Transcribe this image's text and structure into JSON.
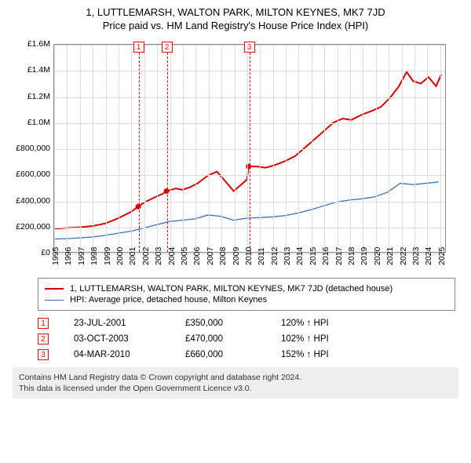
{
  "title": {
    "line1": "1, LUTTLEMARSH, WALTON PARK, MILTON KEYNES, MK7 7JD",
    "line2": "Price paid vs. HM Land Registry's House Price Index (HPI)"
  },
  "chart": {
    "type": "line",
    "background_color": "#ffffff",
    "grid_color": "#dddddd",
    "axis_color": "#888888",
    "x": {
      "min": 1995,
      "max": 2025.5,
      "ticks": [
        1995,
        1996,
        1997,
        1998,
        1999,
        2000,
        2001,
        2002,
        2003,
        2004,
        2005,
        2006,
        2007,
        2008,
        2009,
        2010,
        2011,
        2012,
        2013,
        2014,
        2015,
        2016,
        2017,
        2018,
        2019,
        2020,
        2021,
        2022,
        2023,
        2024,
        2025
      ]
    },
    "y": {
      "min": 0,
      "max": 1600000,
      "step": 200000,
      "tick_labels": [
        "£0",
        "£200,000",
        "£400,000",
        "£600,000",
        "£800,000",
        "£1.0M",
        "£1.2M",
        "£1.4M",
        "£1.6M"
      ]
    },
    "series": {
      "price_paid": {
        "label": "1, LUTTLEMARSH, WALTON PARK, MILTON KEYNES, MK7 7JD (detached house)",
        "color": "#d40000",
        "line_width": 2,
        "points": [
          [
            1995.0,
            180000
          ],
          [
            1996.0,
            185000
          ],
          [
            1997.0,
            190000
          ],
          [
            1998.0,
            200000
          ],
          [
            1999.0,
            220000
          ],
          [
            2000.0,
            260000
          ],
          [
            2001.0,
            310000
          ],
          [
            2001.56,
            350000
          ],
          [
            2002.0,
            380000
          ],
          [
            2002.8,
            420000
          ],
          [
            2003.5,
            450000
          ],
          [
            2003.76,
            470000
          ],
          [
            2004.5,
            490000
          ],
          [
            2005.0,
            480000
          ],
          [
            2005.6,
            500000
          ],
          [
            2006.2,
            530000
          ],
          [
            2007.0,
            590000
          ],
          [
            2007.7,
            620000
          ],
          [
            2008.4,
            540000
          ],
          [
            2009.0,
            470000
          ],
          [
            2009.6,
            520000
          ],
          [
            2010.05,
            560000
          ],
          [
            2010.17,
            660000
          ],
          [
            2010.8,
            660000
          ],
          [
            2011.5,
            650000
          ],
          [
            2012.2,
            670000
          ],
          [
            2013.0,
            700000
          ],
          [
            2013.8,
            740000
          ],
          [
            2014.5,
            800000
          ],
          [
            2015.2,
            860000
          ],
          [
            2016.0,
            930000
          ],
          [
            2016.8,
            1000000
          ],
          [
            2017.5,
            1030000
          ],
          [
            2018.2,
            1020000
          ],
          [
            2019.0,
            1060000
          ],
          [
            2019.8,
            1090000
          ],
          [
            2020.5,
            1120000
          ],
          [
            2021.2,
            1190000
          ],
          [
            2021.9,
            1280000
          ],
          [
            2022.5,
            1390000
          ],
          [
            2023.0,
            1320000
          ],
          [
            2023.6,
            1300000
          ],
          [
            2024.2,
            1350000
          ],
          [
            2024.8,
            1280000
          ],
          [
            2025.2,
            1370000
          ]
        ]
      },
      "hpi": {
        "label": "HPI: Average price, detached house, Milton Keynes",
        "color": "#3a6fb7",
        "line_width": 1.3,
        "points": [
          [
            1995.0,
            100000
          ],
          [
            1996.0,
            102000
          ],
          [
            1997.0,
            108000
          ],
          [
            1998.0,
            115000
          ],
          [
            1999.0,
            128000
          ],
          [
            2000.0,
            145000
          ],
          [
            2001.0,
            160000
          ],
          [
            2002.0,
            185000
          ],
          [
            2003.0,
            210000
          ],
          [
            2004.0,
            235000
          ],
          [
            2005.0,
            245000
          ],
          [
            2006.0,
            255000
          ],
          [
            2007.0,
            285000
          ],
          [
            2008.0,
            275000
          ],
          [
            2009.0,
            245000
          ],
          [
            2010.0,
            260000
          ],
          [
            2011.0,
            265000
          ],
          [
            2012.0,
            270000
          ],
          [
            2013.0,
            280000
          ],
          [
            2014.0,
            300000
          ],
          [
            2015.0,
            325000
          ],
          [
            2016.0,
            355000
          ],
          [
            2017.0,
            385000
          ],
          [
            2018.0,
            400000
          ],
          [
            2019.0,
            410000
          ],
          [
            2020.0,
            425000
          ],
          [
            2021.0,
            460000
          ],
          [
            2022.0,
            530000
          ],
          [
            2023.0,
            520000
          ],
          [
            2024.0,
            530000
          ],
          [
            2025.0,
            540000
          ]
        ]
      }
    },
    "sale_points": [
      {
        "x": 2001.56,
        "y": 350000
      },
      {
        "x": 2003.76,
        "y": 470000
      },
      {
        "x": 2010.17,
        "y": 660000
      }
    ],
    "events": [
      {
        "num": "1",
        "x": 2001.56,
        "date": "23-JUL-2001",
        "price": "£350,000",
        "delta": "120% ↑ HPI"
      },
      {
        "num": "2",
        "x": 2003.76,
        "date": "03-OCT-2003",
        "price": "£470,000",
        "delta": "102% ↑ HPI"
      },
      {
        "num": "3",
        "x": 2010.17,
        "date": "04-MAR-2010",
        "price": "£660,000",
        "delta": "152% ↑ HPI"
      }
    ]
  },
  "legend": {
    "items": [
      {
        "key": "price_paid",
        "swatch_class": "red"
      },
      {
        "key": "hpi",
        "swatch_class": "blue"
      }
    ]
  },
  "attribution": {
    "line1": "Contains HM Land Registry data © Crown copyright and database right 2024.",
    "line2": "This data is licensed under the Open Government Licence v3.0."
  }
}
